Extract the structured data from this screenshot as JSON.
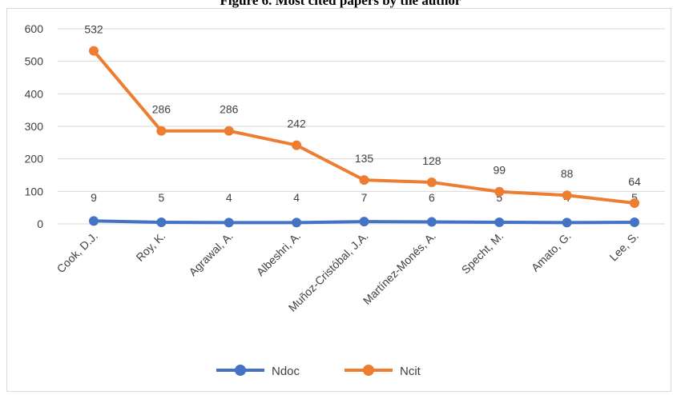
{
  "chart_data": {
    "type": "line",
    "title": "Figure 6. Most cited papers by the author",
    "xlabel": "",
    "ylabel": "",
    "categories": [
      "Cook, D.J.",
      "Roy, K.",
      "Agrawal, A.",
      "Albeshri, A.",
      "Muñoz-Cristóbal, J.A.",
      "Martínez-Monés, A.",
      "Specht, M.",
      "Amato, G.",
      "Lee, S."
    ],
    "ylim": [
      0,
      600
    ],
    "yticks": [
      0,
      100,
      200,
      300,
      400,
      500,
      600
    ],
    "grid": true,
    "legend": "bottom",
    "series": [
      {
        "name": "Ndoc",
        "color": "#4472c4",
        "values": [
          9,
          5,
          4,
          4,
          7,
          6,
          5,
          4,
          5
        ]
      },
      {
        "name": "Ncit",
        "color": "#ed7d31",
        "values": [
          532,
          286,
          286,
          242,
          135,
          128,
          99,
          88,
          64
        ]
      }
    ]
  }
}
